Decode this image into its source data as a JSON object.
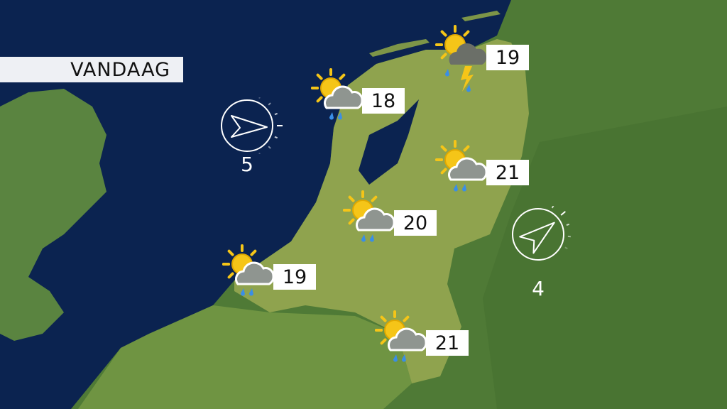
{
  "title": "VANDAAG",
  "colors": {
    "sea": "#0b2350",
    "land_nl": "#8a9f4a",
    "land_other": "#4f7a36",
    "sun": "#f5c518",
    "rain": "#3a8ee6"
  },
  "forecasts": [
    {
      "temperature": "18",
      "icon": "sun-cloud-rain-icon"
    },
    {
      "temperature": "19",
      "icon": "sun-thunderstorm-icon"
    },
    {
      "temperature": "21",
      "icon": "sun-cloud-rain-icon"
    },
    {
      "temperature": "20",
      "icon": "sun-cloud-rain-icon"
    },
    {
      "temperature": "19",
      "icon": "sun-cloud-rain-icon"
    },
    {
      "temperature": "21",
      "icon": "sun-cloud-rain-icon"
    }
  ],
  "wind": [
    {
      "force": "5",
      "direction": "east"
    },
    {
      "force": "4",
      "direction": "northeast"
    }
  ]
}
